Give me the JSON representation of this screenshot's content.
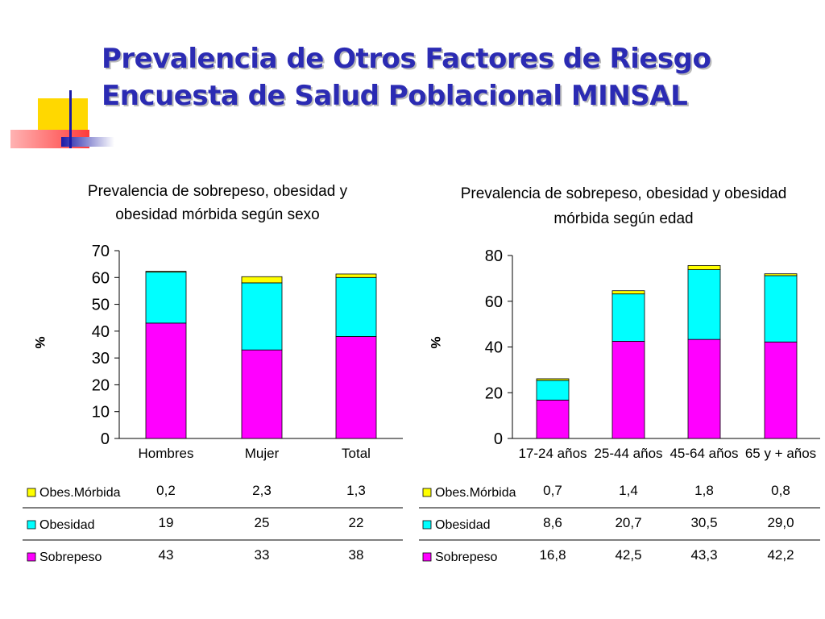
{
  "slide": {
    "title_line1": "Prevalencia de Otros Factores de Riesgo",
    "title_line2": "Encuesta de Salud Poblacional MINSAL"
  },
  "colors": {
    "title": "#2b2bb3",
    "obes_morbida": "#ffff00",
    "obesidad": "#00ffff",
    "sobrepeso": "#ff00ff",
    "deco_yellow": "#ffd800",
    "deco_red": "#ff3b3b",
    "deco_blue": "#1a1aa6"
  },
  "chart_data": [
    {
      "type": "bar",
      "stacked": true,
      "title_lines": [
        "Prevalencia de sobrepeso, obesidad y",
        "obesidad mórbida según sexo"
      ],
      "ylabel": "%",
      "ylim": [
        0,
        70
      ],
      "yticks": [
        0,
        10,
        20,
        30,
        40,
        50,
        60,
        70
      ],
      "categories": [
        "Hombres",
        "Mujer",
        "Total"
      ],
      "series": [
        {
          "name": "Sobrepeso",
          "values": [
            43,
            33,
            38
          ],
          "labels": [
            "43",
            "33",
            "38"
          ],
          "color": "#ff00ff"
        },
        {
          "name": "Obesidad",
          "values": [
            19,
            25,
            22
          ],
          "labels": [
            "19",
            "25",
            "22"
          ],
          "color": "#00ffff"
        },
        {
          "name": "Obes.Mórbida",
          "values": [
            0.2,
            2.3,
            1.3
          ],
          "labels": [
            "0,2",
            "2,3",
            "1,3"
          ],
          "color": "#ffff00"
        }
      ]
    },
    {
      "type": "bar",
      "stacked": true,
      "title_lines": [
        "Prevalencia de sobrepeso, obesidad y obesidad",
        "mórbida según edad"
      ],
      "ylabel": "%",
      "ylim": [
        0,
        80
      ],
      "yticks": [
        0,
        20,
        40,
        60,
        80
      ],
      "categories": [
        "17-24 años",
        "25-44 años",
        "45-64 años",
        "65 y + años"
      ],
      "series": [
        {
          "name": "Sobrepeso",
          "values": [
            16.8,
            42.5,
            43.3,
            42.2
          ],
          "labels": [
            "16,8",
            "42,5",
            "43,3",
            "42,2"
          ],
          "color": "#ff00ff"
        },
        {
          "name": "Obesidad",
          "values": [
            8.6,
            20.7,
            30.5,
            29.0
          ],
          "labels": [
            "8,6",
            "20,7",
            "30,5",
            "29,0"
          ],
          "color": "#00ffff"
        },
        {
          "name": "Obes.Mórbida",
          "values": [
            0.7,
            1.4,
            1.8,
            0.8
          ],
          "labels": [
            "0,7",
            "1,4",
            "1,8",
            "0,8"
          ],
          "color": "#ffff00"
        }
      ]
    }
  ]
}
